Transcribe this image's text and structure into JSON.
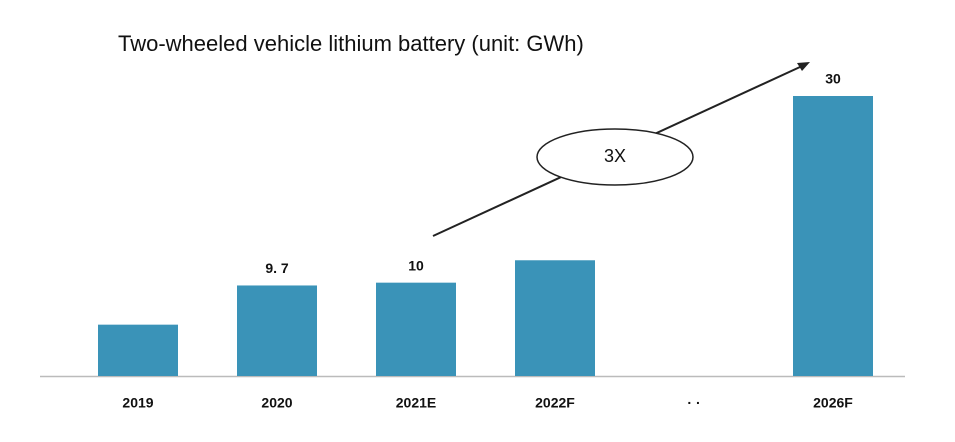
{
  "chart_data": {
    "type": "bar",
    "title": "Two-wheeled vehicle lithium battery (unit: GWh)",
    "categories": [
      "2019",
      "2020",
      "2021E",
      "2022F",
      "· ·",
      "2026F"
    ],
    "values": [
      5.5,
      9.7,
      10,
      12.4,
      null,
      30
    ],
    "value_labels": [
      null,
      "9. 7",
      "10",
      null,
      null,
      "30"
    ],
    "color": "#3a93b8",
    "annotation": "3X"
  }
}
